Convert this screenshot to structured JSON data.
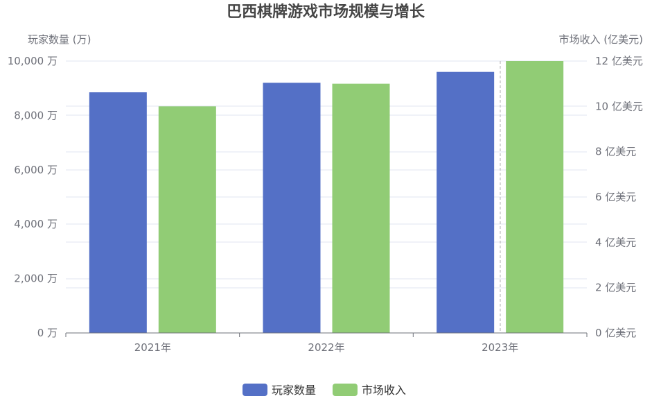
{
  "chart_data": {
    "type": "bar",
    "title": "巴西棋牌游戏市场规模与增长",
    "categories": [
      "2021年",
      "2022年",
      "2023年"
    ],
    "y_left": {
      "label": "玩家数量 (万)",
      "range": [
        0,
        10000
      ],
      "ticks": [
        0,
        2000,
        4000,
        6000,
        8000,
        10000
      ],
      "tick_labels": [
        "0 万",
        "2,000 万",
        "4,000 万",
        "6,000 万",
        "8,000 万",
        "10,000 万"
      ]
    },
    "y_right": {
      "label": "市场收入 (亿美元)",
      "range": [
        0,
        12
      ],
      "ticks": [
        0,
        2,
        4,
        6,
        8,
        10,
        12
      ],
      "tick_labels": [
        "0 亿美元",
        "2 亿美元",
        "4 亿美元",
        "6 亿美元",
        "8 亿美元",
        "10 亿美元",
        "12 亿美元"
      ]
    },
    "series": [
      {
        "name": "玩家数量",
        "axis": "left",
        "values": [
          8850,
          9200,
          9600
        ],
        "color": "#5470c6"
      },
      {
        "name": "市场收入",
        "axis": "right",
        "values": [
          10.0,
          11.0,
          12.0
        ],
        "color": "#91cc75"
      }
    ],
    "grid": true,
    "legend_position": "bottom-center"
  }
}
